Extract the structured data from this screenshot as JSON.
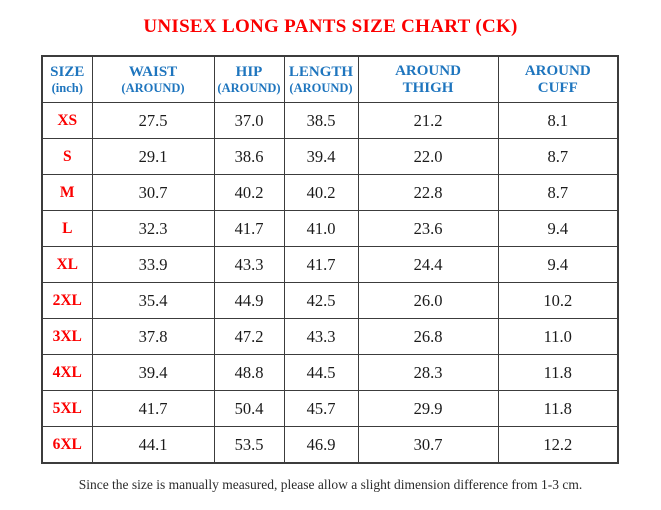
{
  "title": "UNISEX LONG PANTS SIZE CHART (CK)",
  "footnote": "Since the size is manually measured, please allow a slight dimension difference from 1-3 cm.",
  "colors": {
    "title_red": "#fb0000",
    "size_label_red": "#fb0000",
    "header_blue": "#1e75be",
    "value_text": "#1b1b1b",
    "grid_border": "#3c3c3c",
    "background": "#ffffff"
  },
  "table": {
    "headers": [
      {
        "line1": "SIZE",
        "line2": "(inch)"
      },
      {
        "line1": "WAIST",
        "line2": "(AROUND)"
      },
      {
        "line1": "HIP",
        "line2": "(AROUND)"
      },
      {
        "line1": "LENGTH",
        "line2": "(AROUND)"
      },
      {
        "line1": "AROUND",
        "line2": "THIGH"
      },
      {
        "line1": "AROUND",
        "line2": "CUFF"
      }
    ],
    "rows": [
      {
        "size": "XS",
        "values": [
          "27.5",
          "37.0",
          "38.5",
          "21.2",
          "8.1"
        ]
      },
      {
        "size": "S",
        "values": [
          "29.1",
          "38.6",
          "39.4",
          "22.0",
          "8.7"
        ]
      },
      {
        "size": "M",
        "values": [
          "30.7",
          "40.2",
          "40.2",
          "22.8",
          "8.7"
        ]
      },
      {
        "size": "L",
        "values": [
          "32.3",
          "41.7",
          "41.0",
          "23.6",
          "9.4"
        ]
      },
      {
        "size": "XL",
        "values": [
          "33.9",
          "43.3",
          "41.7",
          "24.4",
          "9.4"
        ]
      },
      {
        "size": "2XL",
        "values": [
          "35.4",
          "44.9",
          "42.5",
          "26.0",
          "10.2"
        ]
      },
      {
        "size": "3XL",
        "values": [
          "37.8",
          "47.2",
          "43.3",
          "26.8",
          "11.0"
        ]
      },
      {
        "size": "4XL",
        "values": [
          "39.4",
          "48.8",
          "44.5",
          "28.3",
          "11.8"
        ]
      },
      {
        "size": "5XL",
        "values": [
          "41.7",
          "50.4",
          "45.7",
          "29.9",
          "11.8"
        ]
      },
      {
        "size": "6XL",
        "values": [
          "44.1",
          "53.5",
          "46.9",
          "30.7",
          "12.2"
        ]
      }
    ]
  },
  "chart_data": {
    "type": "table",
    "title": "UNISEX LONG PANTS SIZE CHART (CK)",
    "unit": "inch",
    "columns": [
      "SIZE (inch)",
      "WAIST (AROUND)",
      "HIP (AROUND)",
      "LENGTH (AROUND)",
      "AROUND THIGH",
      "AROUND CUFF"
    ],
    "rows": [
      [
        "XS",
        27.5,
        37.0,
        38.5,
        21.2,
        8.1
      ],
      [
        "S",
        29.1,
        38.6,
        39.4,
        22.0,
        8.7
      ],
      [
        "M",
        30.7,
        40.2,
        40.2,
        22.8,
        8.7
      ],
      [
        "L",
        32.3,
        41.7,
        41.0,
        23.6,
        9.4
      ],
      [
        "XL",
        33.9,
        43.3,
        41.7,
        24.4,
        9.4
      ],
      [
        "2XL",
        35.4,
        44.9,
        42.5,
        26.0,
        10.2
      ],
      [
        "3XL",
        37.8,
        47.2,
        43.3,
        26.8,
        11.0
      ],
      [
        "4XL",
        39.4,
        48.8,
        44.5,
        28.3,
        11.8
      ],
      [
        "5XL",
        41.7,
        50.4,
        45.7,
        29.9,
        11.8
      ],
      [
        "6XL",
        44.1,
        53.5,
        46.9,
        30.7,
        12.2
      ]
    ],
    "annotations": [
      "Since the size is manually measured, please allow a slight dimension difference from 1-3 cm."
    ]
  }
}
